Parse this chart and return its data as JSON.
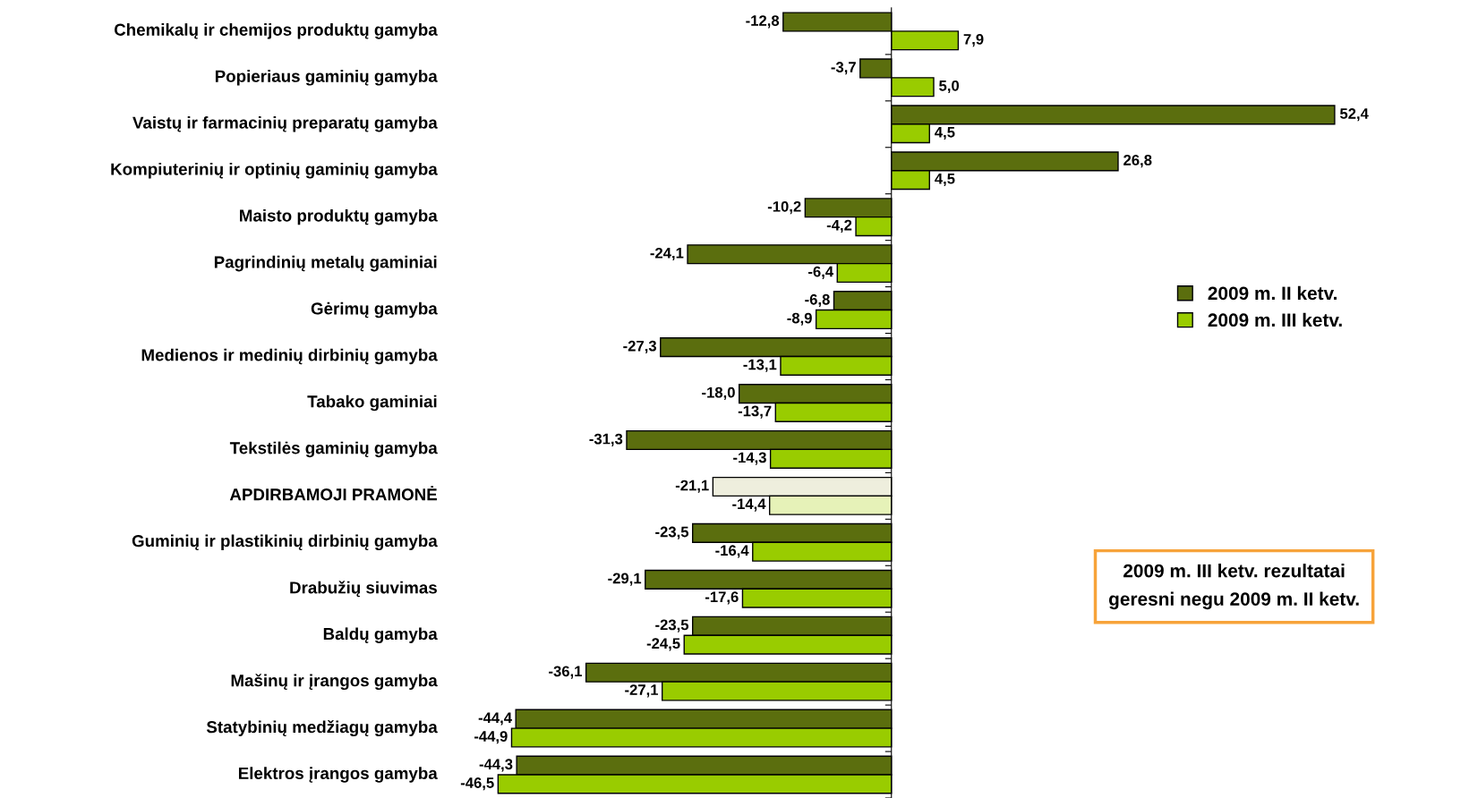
{
  "chart_data": {
    "type": "bar",
    "orientation": "horizontal",
    "categories": [
      "Chemikalų ir chemijos produktų gamyba",
      "Popieriaus gaminių gamyba",
      "Vaistų ir farmacinių preparatų gamyba",
      "Kompiuterinių ir optinių gaminių gamyba",
      "Maisto produktų gamyba",
      "Pagrindinių metalų gaminiai",
      "Gėrimų gamyba",
      "Medienos ir medinių dirbinių gamyba",
      "Tabako gaminiai",
      "Tekstilės gaminių gamyba",
      "APDIRBAMOJI PRAMONĖ",
      "Guminių ir plastikinių dirbinių gamyba",
      "Drabužių siuvimas",
      "Baldų gamyba",
      "Mašinų ir įrangos gamyba",
      "Statybinių medžiagų gamyba",
      "Elektros įrangos gamyba"
    ],
    "series": [
      {
        "name": "2009 m. II ketv.",
        "color": "#5b6e0e",
        "colors": [
          "#5b6e0e",
          "#5b6e0e",
          "#5b6e0e",
          "#5b6e0e",
          "#5b6e0e",
          "#5b6e0e",
          "#5b6e0e",
          "#5b6e0e",
          "#5b6e0e",
          "#5b6e0e",
          "#eeeedd",
          "#5b6e0e",
          "#5b6e0e",
          "#5b6e0e",
          "#5b6e0e",
          "#5b6e0e",
          "#5b6e0e"
        ],
        "values": [
          -12.8,
          -3.7,
          52.4,
          26.8,
          -10.2,
          -24.1,
          -6.8,
          -27.3,
          -18.0,
          -31.3,
          -21.1,
          -23.5,
          -29.1,
          -23.5,
          -36.1,
          -44.4,
          -44.3
        ],
        "value_labels": [
          "-12,8",
          "-3,7",
          "52,4",
          "26,8",
          "-10,2",
          "-24,1",
          "-6,8",
          "-27,3",
          "-18,0",
          "-31,3",
          "-21,1",
          "-23,5",
          "-29,1",
          "-23,5",
          "-36,1",
          "-44,4",
          "-44,3"
        ]
      },
      {
        "name": "2009 m. III ketv.",
        "color": "#99cc00",
        "colors": [
          "#99cc00",
          "#99cc00",
          "#99cc00",
          "#99cc00",
          "#99cc00",
          "#99cc00",
          "#99cc00",
          "#99cc00",
          "#99cc00",
          "#99cc00",
          "#e6f2b8",
          "#99cc00",
          "#99cc00",
          "#99cc00",
          "#99cc00",
          "#99cc00",
          "#99cc00"
        ],
        "values": [
          7.9,
          5.0,
          4.5,
          4.5,
          -4.2,
          -6.4,
          -8.9,
          -13.1,
          -13.7,
          -14.3,
          -14.4,
          -16.4,
          -17.6,
          -24.5,
          -27.1,
          -44.9,
          -46.5
        ],
        "value_labels": [
          "7,9",
          "5,0",
          "4,5",
          "4,5",
          "-4,2",
          "-6,4",
          "-8,9",
          "-13,1",
          "-13,7",
          "-14,3",
          "-14,4",
          "-16,4",
          "-17,6",
          "-24,5",
          "-27,1",
          "-44,9",
          "-46,5"
        ]
      }
    ],
    "tick_labels": "y",
    "grid": false,
    "legend": "right",
    "annotations": [
      "2009 m. III ketv. rezultatai\ngeresni negu 2009 m. II ketv."
    ]
  }
}
